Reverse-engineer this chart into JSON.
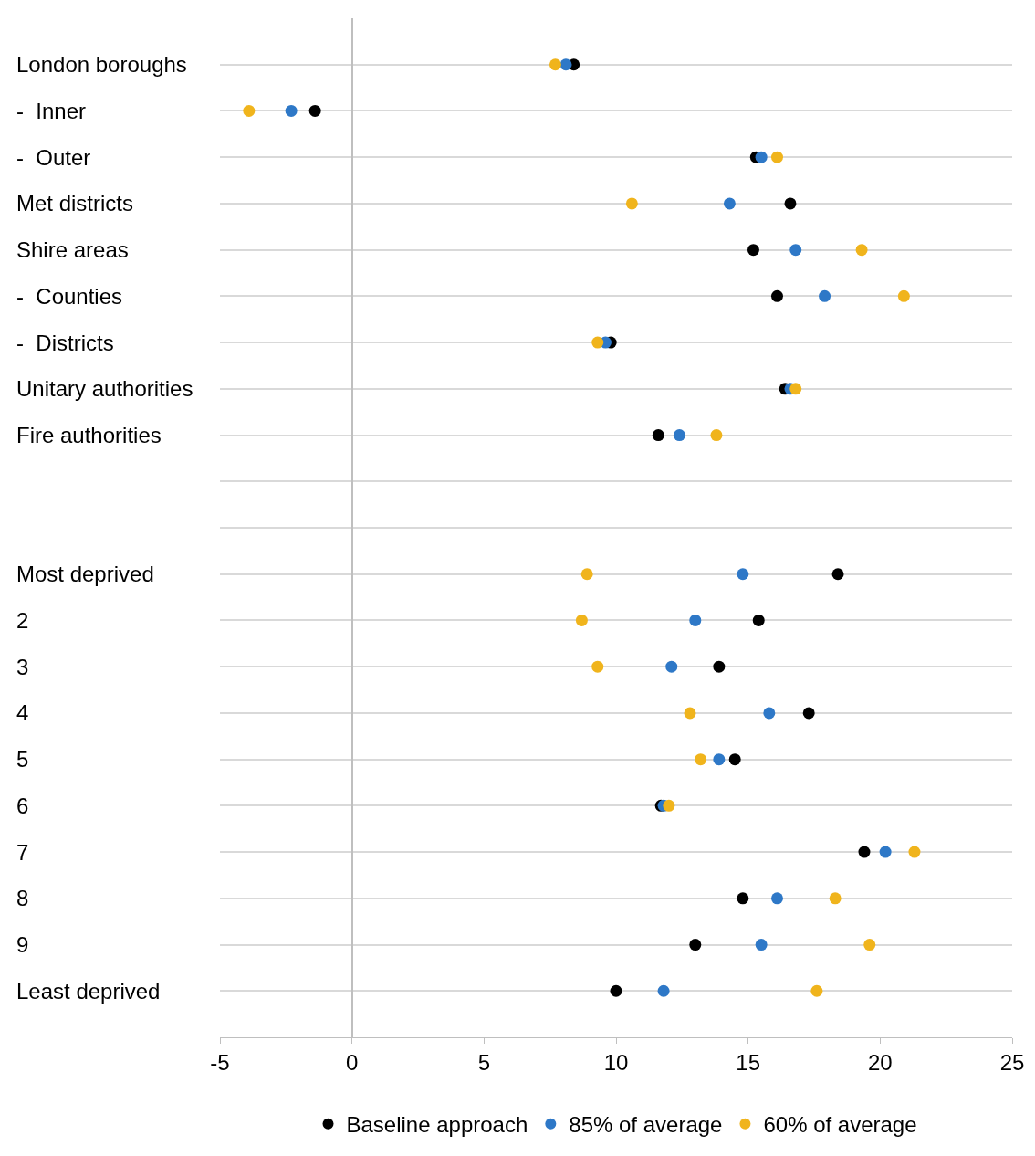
{
  "chart_data": {
    "type": "scatter",
    "orientation": "horizontal",
    "categories": [
      "London boroughs",
      "-  Inner",
      "-  Outer",
      "Met districts",
      "Shire areas",
      "-  Counties",
      "-  Districts",
      "Unitary authorities",
      "Fire authorities",
      null,
      null,
      "Most deprived",
      "2",
      "3",
      "4",
      "5",
      "6",
      "7",
      "8",
      "9",
      "Least deprived"
    ],
    "series": [
      {
        "name": "Baseline approach",
        "color": "#000000",
        "values": [
          8.4,
          -1.4,
          15.3,
          16.6,
          15.2,
          16.1,
          9.8,
          16.4,
          11.6,
          null,
          null,
          18.4,
          15.4,
          13.9,
          17.3,
          14.5,
          11.7,
          19.4,
          14.8,
          13.0,
          10.0
        ]
      },
      {
        "name": "85% of average",
        "color": "#2e78c7",
        "values": [
          8.1,
          -2.3,
          15.5,
          14.3,
          16.8,
          17.9,
          9.6,
          16.6,
          12.4,
          null,
          null,
          14.8,
          13.0,
          12.1,
          15.8,
          13.9,
          11.8,
          20.2,
          16.1,
          15.5,
          11.8
        ]
      },
      {
        "name": "60% of average",
        "color": "#f0b41c",
        "values": [
          7.7,
          -3.9,
          16.1,
          10.6,
          19.3,
          20.9,
          9.3,
          16.8,
          13.8,
          null,
          null,
          8.9,
          8.7,
          9.3,
          12.8,
          13.2,
          12.0,
          21.3,
          18.3,
          19.6,
          17.6
        ]
      }
    ],
    "xlim": [
      -5,
      25
    ],
    "xticks": [
      -5,
      0,
      5,
      10,
      15,
      20,
      25
    ],
    "grid": "y",
    "legend": "bottom",
    "marker": "circle"
  }
}
